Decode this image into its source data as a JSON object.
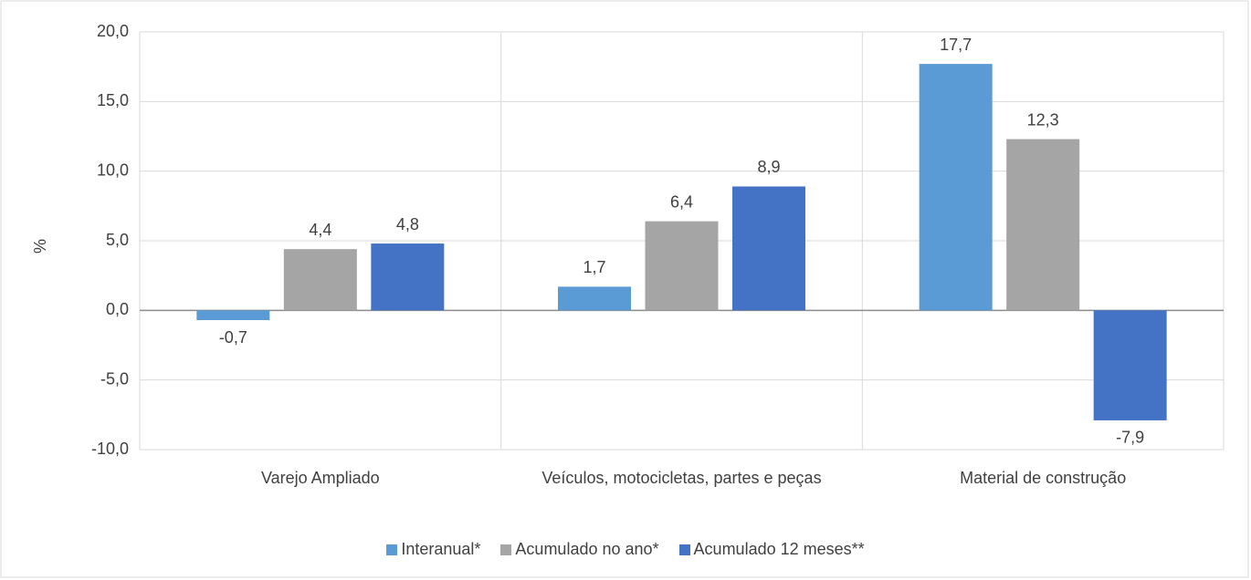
{
  "chart_data": {
    "type": "bar",
    "y_label": "%",
    "categories": [
      "Varejo Ampliado",
      "Veículos, motocicletas, partes e peças",
      "Material de construção"
    ],
    "series": [
      {
        "name": "Interanual*",
        "color": "#5b9bd5",
        "values": [
          -0.7,
          1.7,
          17.7
        ],
        "value_labels": [
          "-0,7",
          "1,7",
          "17,7"
        ]
      },
      {
        "name": "Acumulado no ano*",
        "color": "#a5a5a5",
        "values": [
          4.4,
          6.4,
          12.3
        ],
        "value_labels": [
          "4,4",
          "6,4",
          "12,3"
        ]
      },
      {
        "name": "Acumulado 12 meses**",
        "color": "#4472c4",
        "values": [
          4.8,
          8.9,
          -7.9
        ],
        "value_labels": [
          "4,8",
          "8,9",
          "-7,9"
        ]
      }
    ],
    "ylim": [
      -10,
      20
    ],
    "yticks": [
      {
        "value": -10,
        "label": "-10,0"
      },
      {
        "value": -5,
        "label": "-5,0"
      },
      {
        "value": 0,
        "label": "0,0"
      },
      {
        "value": 5,
        "label": "5,0"
      },
      {
        "value": 10,
        "label": "10,0"
      },
      {
        "value": 15,
        "label": "15,0"
      },
      {
        "value": 20,
        "label": "20,0"
      }
    ],
    "grid": true,
    "legend": "bottom"
  }
}
